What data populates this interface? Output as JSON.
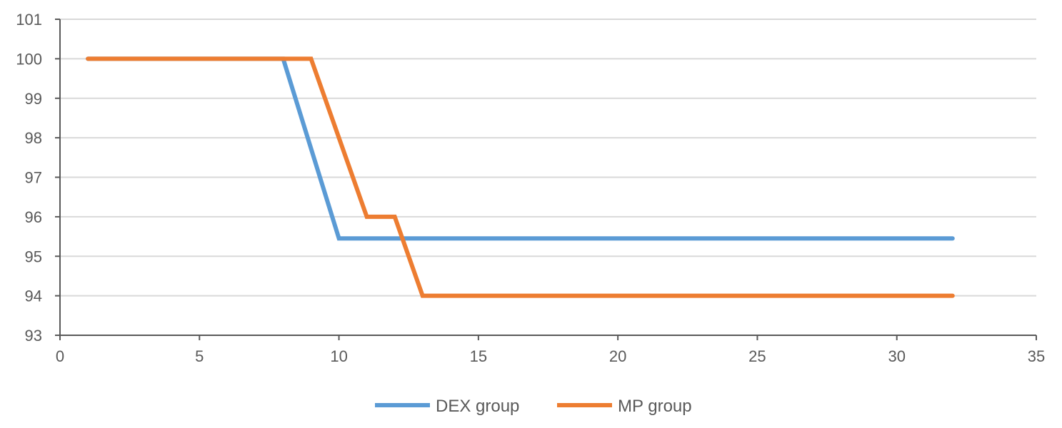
{
  "chart_data": {
    "type": "line",
    "title": "",
    "xlabel": "",
    "ylabel": "",
    "xlim": [
      0,
      35
    ],
    "ylim": [
      93,
      101
    ],
    "x_ticks": [
      0,
      5,
      10,
      15,
      20,
      25,
      30,
      35
    ],
    "y_ticks": [
      93,
      94,
      95,
      96,
      97,
      98,
      99,
      100,
      101
    ],
    "grid": "horizontal",
    "legend_position": "bottom",
    "series": [
      {
        "name": "DEX group",
        "color": "#5B9BD5",
        "points": [
          [
            1,
            100
          ],
          [
            8,
            100
          ],
          [
            10,
            95.45
          ],
          [
            32,
            95.45
          ]
        ]
      },
      {
        "name": "MP group",
        "color": "#ED7D31",
        "points": [
          [
            1,
            100
          ],
          [
            9,
            100
          ],
          [
            11,
            96
          ],
          [
            12,
            96
          ],
          [
            13,
            94
          ],
          [
            32,
            94
          ]
        ]
      }
    ]
  }
}
